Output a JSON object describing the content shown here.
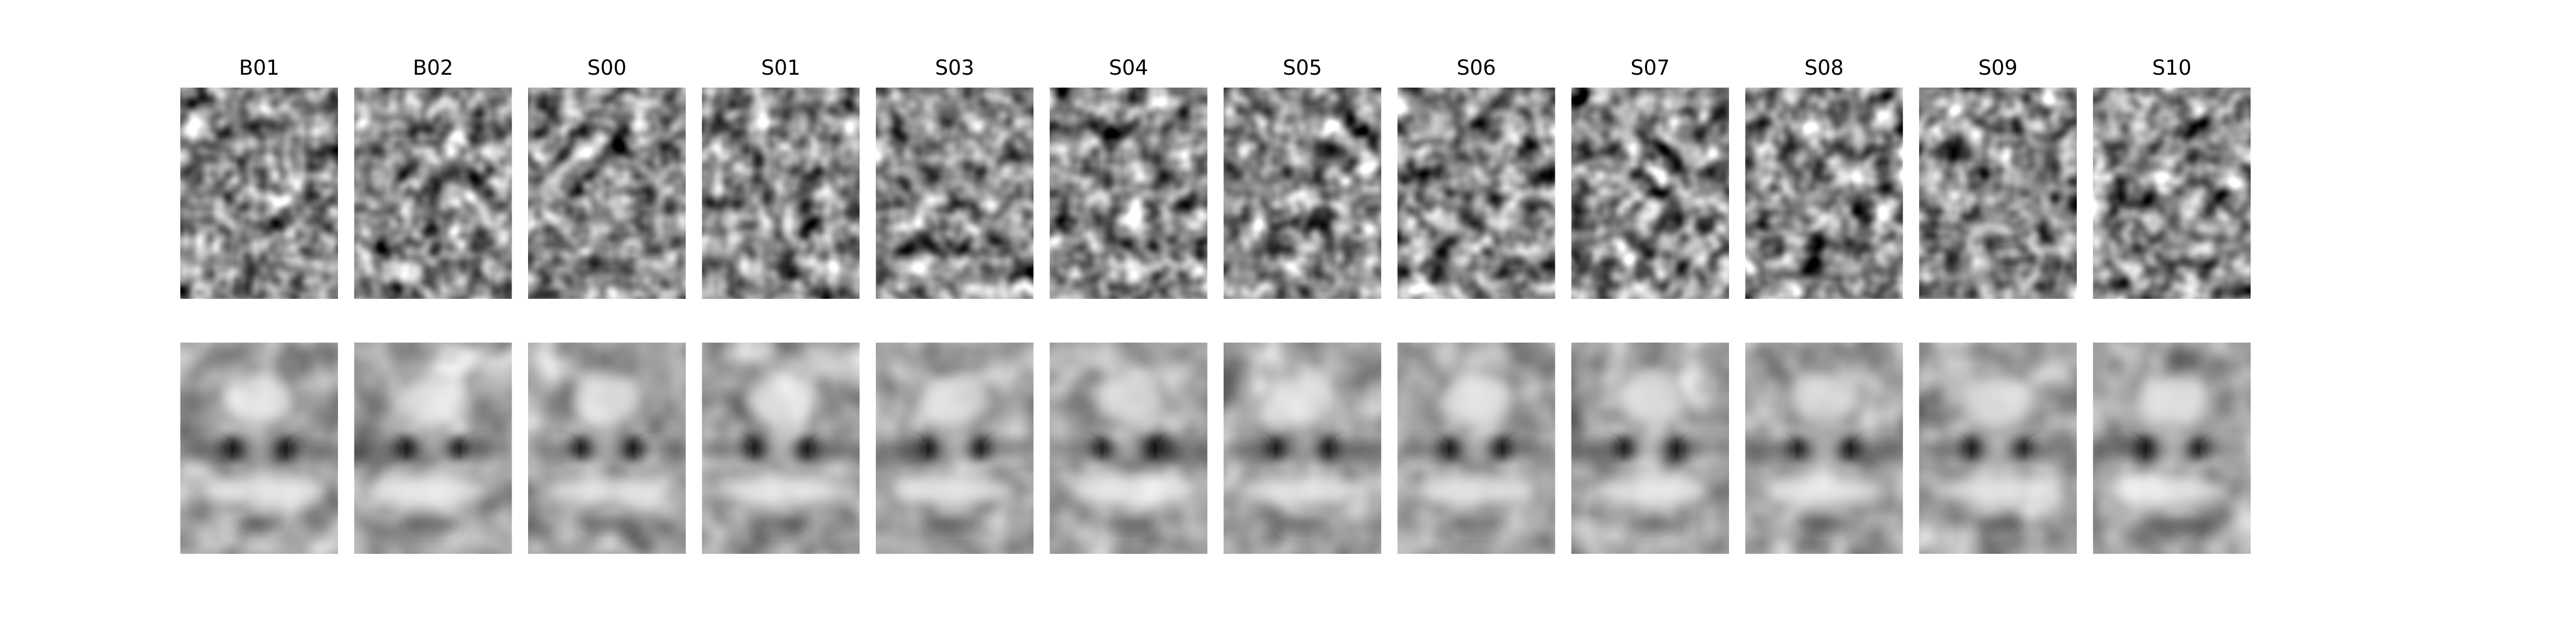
{
  "figure": {
    "columns": [
      {
        "id": "B01"
      },
      {
        "id": "B02"
      },
      {
        "id": "S00"
      },
      {
        "id": "S01"
      },
      {
        "id": "S03"
      },
      {
        "id": "S04"
      },
      {
        "id": "S05"
      },
      {
        "id": "S06"
      },
      {
        "id": "S07"
      },
      {
        "id": "S08"
      },
      {
        "id": "S09"
      },
      {
        "id": "S10"
      }
    ],
    "rows": [
      {
        "kind": "noise-pattern"
      },
      {
        "kind": "classification-image-face"
      }
    ],
    "colormap": "grayscale"
  }
}
